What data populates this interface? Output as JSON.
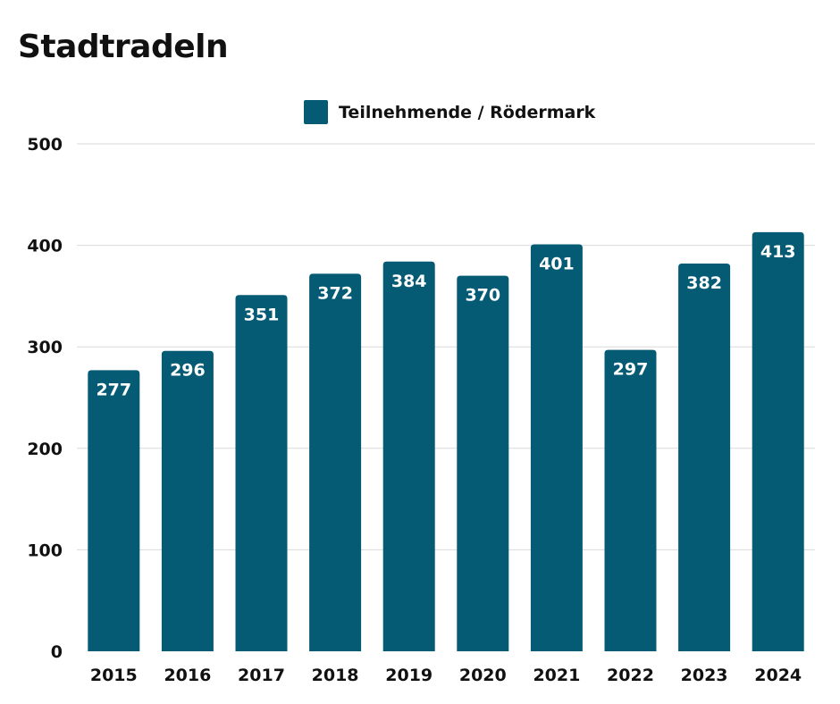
{
  "chart_data": {
    "type": "bar",
    "title": "Stadtradeln",
    "categories": [
      "2015",
      "2016",
      "2017",
      "2018",
      "2019",
      "2020",
      "2021",
      "2022",
      "2023",
      "2024"
    ],
    "series": [
      {
        "name": "Teilnehmende / Rödermark",
        "values": [
          277,
          296,
          351,
          372,
          384,
          370,
          401,
          297,
          382,
          413
        ],
        "color": "#055b73"
      }
    ],
    "ylim": [
      0,
      500
    ],
    "yticks": [
      0,
      100,
      200,
      300,
      400,
      500
    ],
    "grid": true,
    "legend_position": "top-center",
    "data_labels": true
  }
}
